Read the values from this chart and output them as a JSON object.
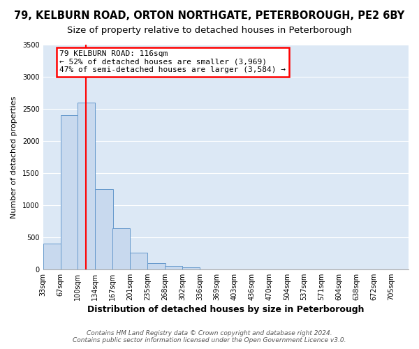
{
  "title": "79, KELBURN ROAD, ORTON NORTHGATE, PETERBOROUGH, PE2 6BY",
  "subtitle": "Size of property relative to detached houses in Peterborough",
  "xlabel": "Distribution of detached houses by size in Peterborough",
  "ylabel": "Number of detached properties",
  "bar_color": "#c8d9ee",
  "bar_edge_color": "#6699cc",
  "plot_bg_color": "#dce8f5",
  "fig_bg_color": "#ffffff",
  "grid_color": "#ffffff",
  "red_line_x": 116,
  "categories": [
    "33sqm",
    "67sqm",
    "100sqm",
    "134sqm",
    "167sqm",
    "201sqm",
    "235sqm",
    "268sqm",
    "302sqm",
    "336sqm",
    "369sqm",
    "403sqm",
    "436sqm",
    "470sqm",
    "504sqm",
    "537sqm",
    "571sqm",
    "604sqm",
    "638sqm",
    "672sqm",
    "705sqm"
  ],
  "bin_edges": [
    33,
    67,
    100,
    134,
    167,
    201,
    235,
    268,
    302,
    336,
    369,
    403,
    436,
    470,
    504,
    537,
    571,
    604,
    638,
    672,
    705
  ],
  "bin_width": 34,
  "bar_values": [
    400,
    2400,
    2600,
    1250,
    640,
    260,
    100,
    50,
    30,
    0,
    0,
    0,
    0,
    0,
    0,
    0,
    0,
    0,
    0,
    0
  ],
  "ylim": [
    0,
    3500
  ],
  "yticks": [
    0,
    500,
    1000,
    1500,
    2000,
    2500,
    3000,
    3500
  ],
  "annotation_title": "79 KELBURN ROAD: 116sqm",
  "annotation_line1": "← 52% of detached houses are smaller (3,969)",
  "annotation_line2": "47% of semi-detached houses are larger (3,584) →",
  "footer1": "Contains HM Land Registry data © Crown copyright and database right 2024.",
  "footer2": "Contains public sector information licensed under the Open Government Licence v3.0.",
  "title_fontsize": 10.5,
  "subtitle_fontsize": 9.5,
  "xlabel_fontsize": 9,
  "ylabel_fontsize": 8,
  "tick_fontsize": 7,
  "annotation_fontsize": 8,
  "footer_fontsize": 6.5
}
